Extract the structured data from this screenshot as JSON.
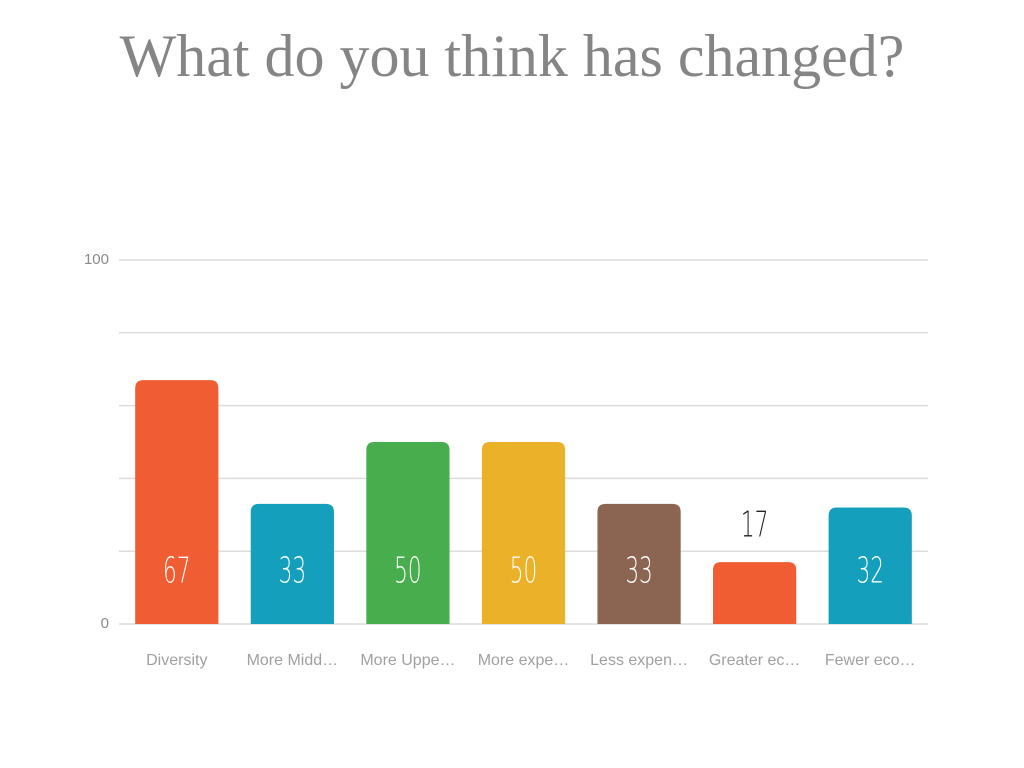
{
  "chart_data": {
    "type": "bar",
    "title": "What do you think has changed?",
    "categories": [
      "Diversity",
      "More Midd…",
      "More Uppe…",
      "More expe…",
      "Less expen…",
      "Greater ec…",
      "Fewer eco…"
    ],
    "values": [
      67,
      33,
      50,
      50,
      33,
      17,
      32
    ],
    "colors": [
      "#f05d32",
      "#14a0bc",
      "#48ad4c",
      "#ebb128",
      "#8b6551",
      "#f05d32",
      "#14a0bc"
    ],
    "ylim": [
      0,
      100
    ],
    "yticks": [
      0,
      100
    ],
    "minor_yticks": [
      20,
      40,
      60,
      80
    ],
    "grid": true
  }
}
